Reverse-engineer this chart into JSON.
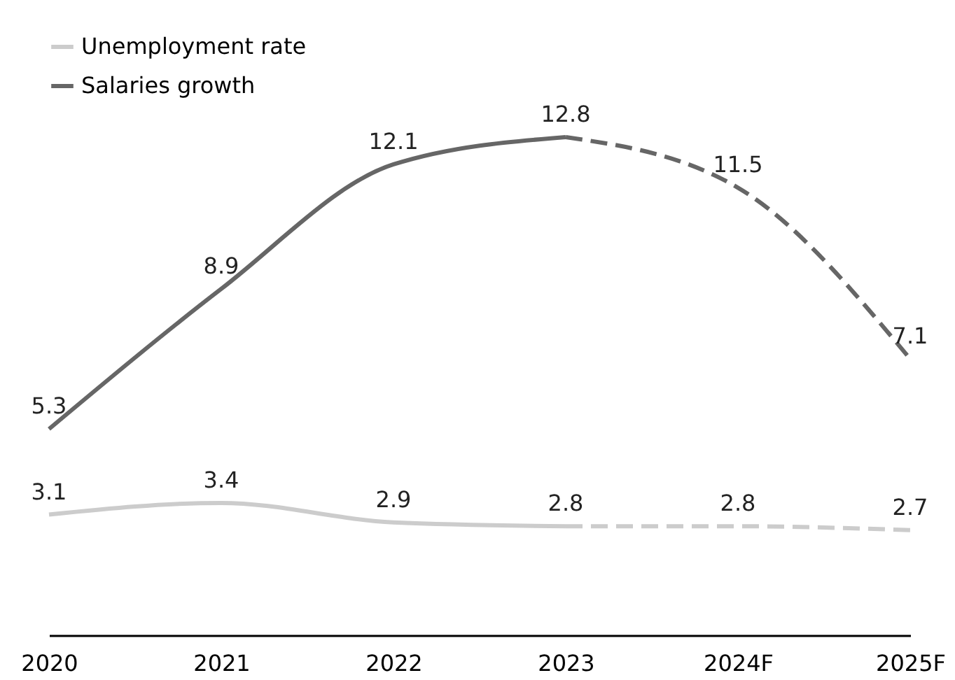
{
  "chart_data": {
    "type": "line",
    "categories": [
      "2020",
      "2021",
      "2022",
      "2023",
      "2024F",
      "2025F"
    ],
    "data_labels": true,
    "legend": "top left",
    "grid": false,
    "tick_labels": "x",
    "series": [
      {
        "name": "Unemployment rate",
        "color": "#cccccc",
        "line_style": "solid",
        "values": [
          3.1,
          3.4,
          2.9,
          2.8,
          null,
          null
        ]
      },
      {
        "name": "Salaries growth",
        "color": "#666666",
        "line_style": "solid",
        "values": [
          5.3,
          8.9,
          12.1,
          12.8,
          null,
          null
        ]
      },
      {
        "color": "#cccccc",
        "line_style": "dashed",
        "values": [
          null,
          null,
          null,
          2.8,
          2.8,
          2.7
        ],
        "value_labels": [
          null,
          null,
          null,
          null,
          "2.8",
          "2.7"
        ]
      },
      {
        "color": "#666666",
        "line_style": "dashed",
        "values": [
          null,
          null,
          null,
          12.8,
          11.5,
          7.1
        ],
        "value_labels": [
          null,
          null,
          null,
          null,
          "11.5",
          "7.1"
        ]
      }
    ]
  }
}
